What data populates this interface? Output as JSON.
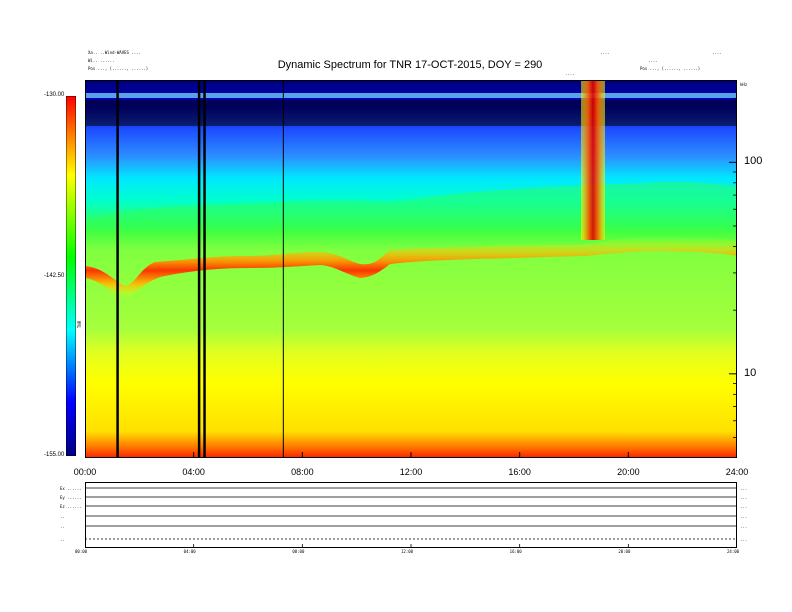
{
  "header": {
    "title": "Dynamic Spectrum for TNR 17-OCT-2015, DOY = 290",
    "left_line1": "Xa.. ..Wind-WAVES ....",
    "left_line2": "Wi.. ......",
    "left_line3": "Pos ..., (......, ......)",
    "right_line1": "....",
    "right_line2": "....",
    "right_line3": "Pos ..., (......, ......)",
    "right_label_far": "....",
    "freq_unit_label": "kHz",
    "colorbar_label": "TNR"
  },
  "chart_data": {
    "type": "heatmap",
    "title": "Dynamic Spectrum for TNR 17-OCT-2015, DOY = 290",
    "x_label": "",
    "y_label": "",
    "x_ticks": [
      "00:00",
      "04:00",
      "08:00",
      "12:00",
      "16:00",
      "20:00",
      "24:00"
    ],
    "x_range_hours": [
      0,
      24
    ],
    "y_scale": "log",
    "y_ticks": [
      "100",
      "10"
    ],
    "y_range": [
      4,
      245
    ],
    "colorbar": {
      "ticks": [
        "-130.00",
        "-142.50",
        "-155.00"
      ],
      "range": [
        -155.0,
        -130.0
      ],
      "colors": [
        "#000080",
        "#0000ff",
        "#00ffff",
        "#00ff00",
        "#ffff00",
        "#ff0000"
      ]
    },
    "features": {
      "black_vertical_lines_hours": [
        1.2,
        4.2,
        4.4,
        7.3
      ],
      "red_burst_hours": [
        18.2,
        18.9
      ],
      "red_burst_label": "...."
    },
    "bottom_panel": {
      "row_labels": [
        "Ex ......",
        "Ey ......",
        "Ez ......",
        "..",
        "..",
        ".."
      ],
      "right_labels": [
        "...",
        "...",
        "...",
        "...",
        "...",
        "..."
      ],
      "x_ticks": [
        "00:00",
        "04:00",
        "08:00",
        "12:00",
        "16:00",
        "20:00",
        "24:00"
      ]
    }
  }
}
